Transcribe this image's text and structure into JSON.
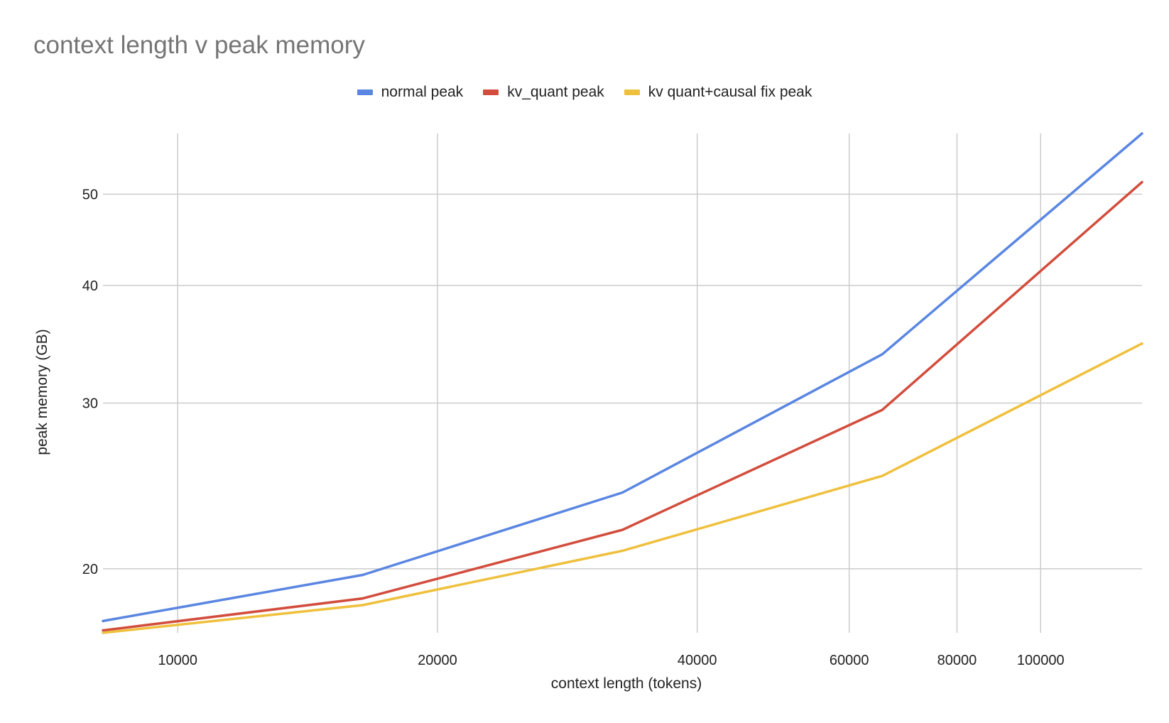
{
  "chart_data": {
    "type": "line",
    "title": "context length v peak memory",
    "xlabel": "context length (tokens)",
    "ylabel": "peak memory (GB)",
    "x_scale": "log",
    "y_scale": "log",
    "xlim": [
      8192,
      131072
    ],
    "ylim": [
      17.1,
      58
    ],
    "x_ticks": [
      10000,
      20000,
      40000,
      60000,
      80000,
      100000
    ],
    "y_ticks": [
      20,
      30,
      40,
      50
    ],
    "grid": true,
    "legend_position": "top",
    "x": [
      8192,
      16384,
      32768,
      65536,
      131072
    ],
    "series": [
      {
        "name": "normal peak",
        "color": "#5a86e1",
        "values": [
          17.6,
          19.7,
          24.1,
          33.8,
          58.0
        ]
      },
      {
        "name": "kv_quant peak",
        "color": "#d24d3d",
        "values": [
          17.2,
          18.6,
          22.0,
          29.5,
          51.5
        ]
      },
      {
        "name": "kv quant+causal fix peak",
        "color": "#efc03d",
        "values": [
          17.1,
          18.3,
          20.9,
          25.1,
          34.7
        ]
      }
    ]
  }
}
